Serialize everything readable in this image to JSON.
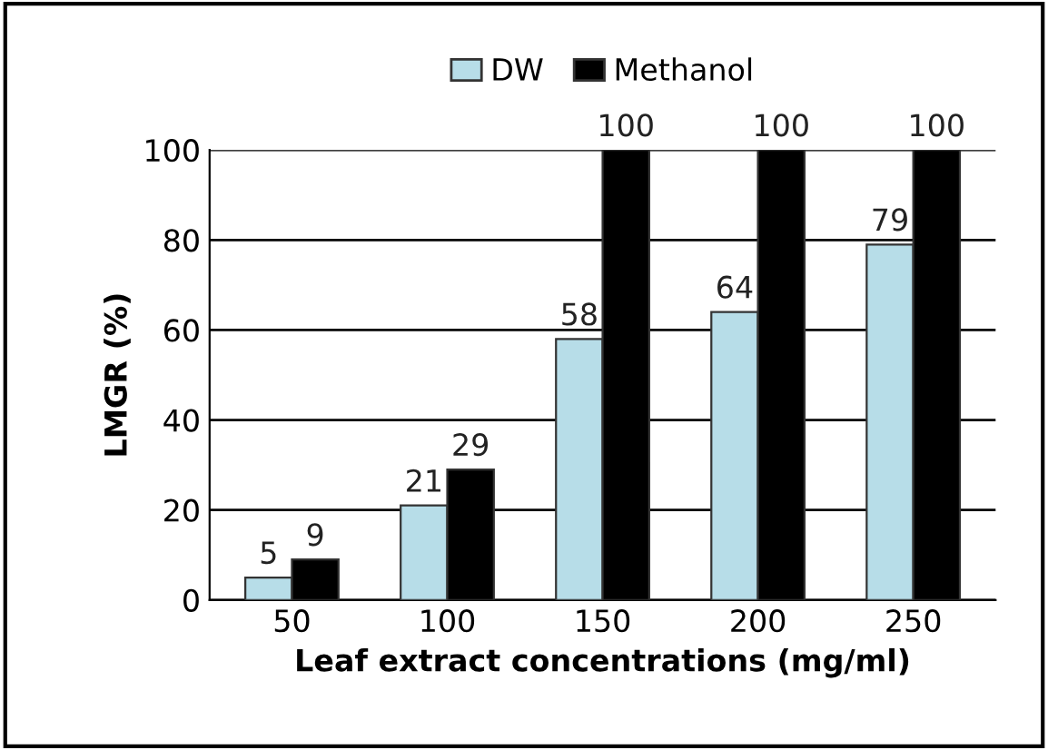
{
  "chart_data": {
    "type": "bar",
    "xlabel": "Leaf extract concentrations (mg/ml)",
    "ylabel": "LMGR (%)",
    "categories": [
      "50",
      "100",
      "150",
      "200",
      "250"
    ],
    "series": [
      {
        "name": "DW",
        "color": "#b7dde8",
        "values": [
          5,
          21,
          58,
          64,
          79
        ]
      },
      {
        "name": "Methanol",
        "color": "#000000",
        "values": [
          9,
          29,
          100,
          100,
          100
        ]
      }
    ],
    "ylim": [
      0,
      100
    ],
    "yticks": [
      0,
      20,
      40,
      60,
      80,
      100
    ],
    "grid": "y",
    "legend": "top",
    "data_labels": true
  }
}
